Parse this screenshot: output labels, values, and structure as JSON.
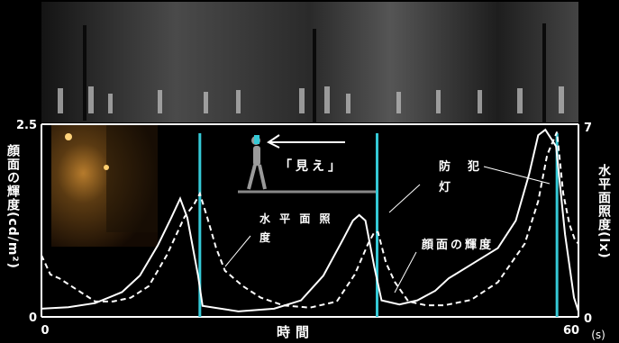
{
  "labels": {
    "left_axis": "顔面の輝度(cd/m²)",
    "right_axis": "水平面照度(lx)",
    "x_axis": "時間",
    "x_unit": "(s)",
    "mieru": "「見え」",
    "streetlight_1": "防　犯",
    "streetlight_2": "灯",
    "horizontal_illum_1": "水 平 面 照",
    "horizontal_illum_2": "度",
    "face_luminance": "顔面の輝度"
  },
  "colors": {
    "background": "#000000",
    "curve": "#ffffff",
    "marker": "#35c9d6",
    "ground": "#888888",
    "figure": "#9a9a9a"
  },
  "chart_data": {
    "type": "line",
    "x_range": [
      0,
      60
    ],
    "x_ticks": [
      "0",
      "60"
    ],
    "left_axis": {
      "range": [
        0,
        2.5
      ],
      "ticks": [
        "0",
        "2.5"
      ]
    },
    "right_axis": {
      "range": [
        0,
        7
      ],
      "ticks": [
        "0",
        "7"
      ]
    },
    "markers_x": [
      17.7,
      37.5,
      57.6
    ],
    "series": [
      {
        "axis": "right",
        "style": "solid",
        "points": [
          [
            0,
            0.3
          ],
          [
            3,
            0.35
          ],
          [
            6,
            0.5
          ],
          [
            9,
            0.9
          ],
          [
            11,
            1.5
          ],
          [
            13,
            2.6
          ],
          [
            14.5,
            3.6
          ],
          [
            15.5,
            4.3
          ],
          [
            16.3,
            3.6
          ],
          [
            17.5,
            1.5
          ],
          [
            18,
            0.4
          ],
          [
            22,
            0.2
          ],
          [
            26,
            0.3
          ],
          [
            29,
            0.6
          ],
          [
            31.5,
            1.5
          ],
          [
            33.5,
            2.7
          ],
          [
            34.8,
            3.5
          ],
          [
            35.5,
            3.7
          ],
          [
            36.2,
            3.5
          ],
          [
            37.2,
            1.8
          ],
          [
            38,
            0.6
          ],
          [
            40,
            0.45
          ],
          [
            42,
            0.6
          ],
          [
            44,
            0.95
          ],
          [
            45.5,
            1.4
          ],
          [
            48,
            1.9
          ],
          [
            51,
            2.5
          ],
          [
            53,
            3.5
          ],
          [
            54.5,
            5.2
          ],
          [
            55.5,
            6.6
          ],
          [
            56.3,
            6.8
          ],
          [
            57.5,
            6.2
          ],
          [
            58.5,
            3
          ],
          [
            59.5,
            0.7
          ],
          [
            60,
            0.2
          ]
        ]
      },
      {
        "axis": "left",
        "style": "dashed",
        "points": [
          [
            0,
            0.8
          ],
          [
            1,
            0.55
          ],
          [
            2,
            0.5
          ],
          [
            4,
            0.35
          ],
          [
            6,
            0.2
          ],
          [
            8,
            0.2
          ],
          [
            10,
            0.25
          ],
          [
            12,
            0.4
          ],
          [
            14,
            0.8
          ],
          [
            16,
            1.3
          ],
          [
            17,
            1.45
          ],
          [
            17.7,
            1.6
          ],
          [
            18.5,
            1.3
          ],
          [
            19.5,
            0.9
          ],
          [
            20.5,
            0.6
          ],
          [
            22.5,
            0.4
          ],
          [
            24.5,
            0.25
          ],
          [
            27,
            0.15
          ],
          [
            30,
            0.12
          ],
          [
            33,
            0.2
          ],
          [
            35,
            0.55
          ],
          [
            36.5,
            0.95
          ],
          [
            37.2,
            1.1
          ],
          [
            37.6,
            1.1
          ],
          [
            38.5,
            0.7
          ],
          [
            39.5,
            0.45
          ],
          [
            41,
            0.2
          ],
          [
            43,
            0.15
          ],
          [
            45,
            0.15
          ],
          [
            48,
            0.22
          ],
          [
            51,
            0.45
          ],
          [
            54,
            0.95
          ],
          [
            55.5,
            1.5
          ],
          [
            56.5,
            2.1
          ],
          [
            57.6,
            2.4
          ],
          [
            58.3,
            1.6
          ],
          [
            59,
            1.2
          ],
          [
            59.6,
            1
          ],
          [
            60,
            0.95
          ]
        ]
      }
    ]
  }
}
